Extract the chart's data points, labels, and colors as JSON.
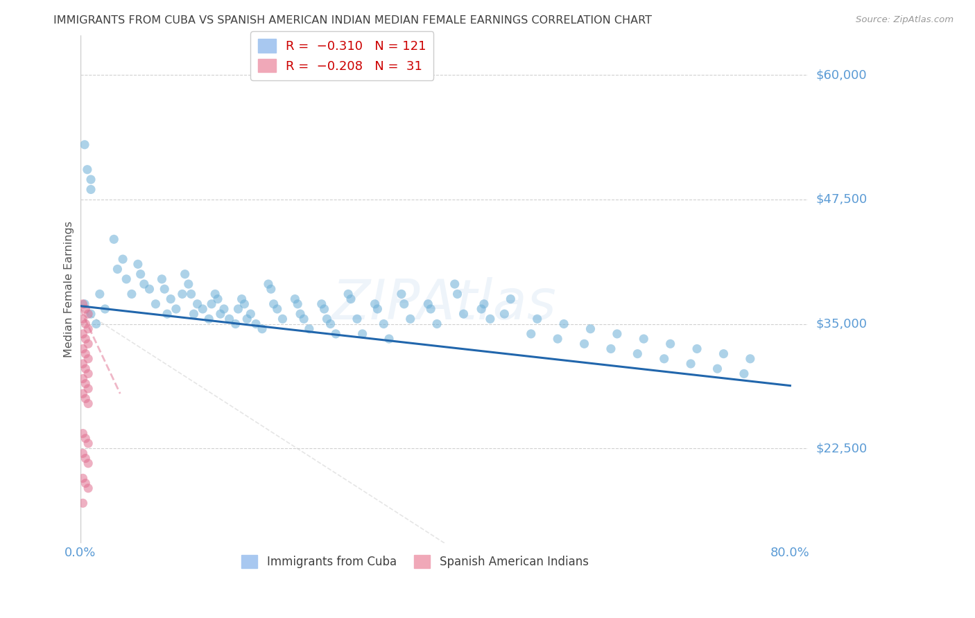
{
  "title": "IMMIGRANTS FROM CUBA VS SPANISH AMERICAN INDIAN MEDIAN FEMALE EARNINGS CORRELATION CHART",
  "source": "Source: ZipAtlas.com",
  "ylabel": "Median Female Earnings",
  "y_values": [
    22500,
    35000,
    47500,
    60000
  ],
  "y_tick_labels": [
    "$22,500",
    "$35,000",
    "$47,500",
    "$60,000"
  ],
  "ylim": [
    13000,
    64000
  ],
  "xlim": [
    0.0,
    0.82
  ],
  "blue_scatter_x": [
    0.022,
    0.028,
    0.008,
    0.012,
    0.038,
    0.042,
    0.052,
    0.058,
    0.048,
    0.065,
    0.072,
    0.078,
    0.085,
    0.068,
    0.095,
    0.102,
    0.108,
    0.115,
    0.092,
    0.098,
    0.125,
    0.132,
    0.138,
    0.145,
    0.122,
    0.128,
    0.118,
    0.155,
    0.162,
    0.168,
    0.175,
    0.152,
    0.158,
    0.148,
    0.185,
    0.192,
    0.198,
    0.205,
    0.182,
    0.188,
    0.178,
    0.215,
    0.222,
    0.228,
    0.212,
    0.218,
    0.245,
    0.252,
    0.258,
    0.242,
    0.248,
    0.275,
    0.282,
    0.288,
    0.272,
    0.278,
    0.305,
    0.312,
    0.318,
    0.302,
    0.335,
    0.342,
    0.348,
    0.332,
    0.365,
    0.372,
    0.362,
    0.395,
    0.402,
    0.392,
    0.425,
    0.432,
    0.422,
    0.455,
    0.462,
    0.452,
    0.485,
    0.478,
    0.515,
    0.508,
    0.545,
    0.538,
    0.575,
    0.568,
    0.605,
    0.598,
    0.635,
    0.628,
    0.665,
    0.658,
    0.695,
    0.688,
    0.725,
    0.718,
    0.755,
    0.748,
    0.005,
    0.012,
    0.018,
    0.005,
    0.012
  ],
  "blue_scatter_y": [
    38000,
    36500,
    50500,
    48500,
    43500,
    40500,
    39500,
    38000,
    41500,
    41000,
    39000,
    38500,
    37000,
    40000,
    38500,
    37500,
    36500,
    38000,
    39500,
    36000,
    38000,
    37000,
    36500,
    35500,
    39000,
    36000,
    40000,
    37500,
    36500,
    35500,
    35000,
    38000,
    36000,
    37000,
    37000,
    36000,
    35000,
    34500,
    37500,
    35500,
    36500,
    38500,
    36500,
    35500,
    39000,
    37000,
    37000,
    35500,
    34500,
    37500,
    36000,
    36500,
    35000,
    34000,
    37000,
    35500,
    37500,
    35500,
    34000,
    38000,
    36500,
    35000,
    33500,
    37000,
    37000,
    35500,
    38000,
    36500,
    35000,
    37000,
    38000,
    36000,
    39000,
    37000,
    35500,
    36500,
    37500,
    36000,
    35500,
    34000,
    35000,
    33500,
    34500,
    33000,
    34000,
    32500,
    33500,
    32000,
    33000,
    31500,
    32500,
    31000,
    32000,
    30500,
    31500,
    30000,
    37000,
    36000,
    35000,
    53000,
    49500
  ],
  "pink_scatter_x": [
    0.003,
    0.006,
    0.009,
    0.003,
    0.006,
    0.009,
    0.003,
    0.006,
    0.009,
    0.003,
    0.006,
    0.009,
    0.003,
    0.006,
    0.009,
    0.003,
    0.006,
    0.009,
    0.003,
    0.006,
    0.009,
    0.003,
    0.006,
    0.009,
    0.003,
    0.006,
    0.009,
    0.003,
    0.006,
    0.009,
    0.003
  ],
  "pink_scatter_y": [
    37000,
    36500,
    36000,
    35500,
    35000,
    34500,
    34000,
    33500,
    33000,
    32500,
    32000,
    31500,
    31000,
    30500,
    30000,
    29500,
    29000,
    28500,
    28000,
    27500,
    27000,
    24000,
    23500,
    23000,
    22000,
    21500,
    21000,
    19500,
    19000,
    18500,
    17000
  ],
  "blue_line_x": [
    0.0,
    0.8
  ],
  "blue_line_y": [
    36800,
    28800
  ],
  "pink_line_x": [
    0.0,
    0.045
  ],
  "pink_line_y": [
    36500,
    28000
  ],
  "watermark": "ZIPAtlas",
  "background_color": "#ffffff",
  "scatter_alpha": 0.55,
  "scatter_size": 90,
  "blue_color": "#6baed6",
  "pink_color": "#e07090",
  "blue_line_color": "#2166ac",
  "grid_color": "#d0d0d0",
  "axis_color": "#cccccc",
  "title_color": "#404040",
  "tick_color": "#5b9bd5",
  "legend_label_color": "#cc0000"
}
